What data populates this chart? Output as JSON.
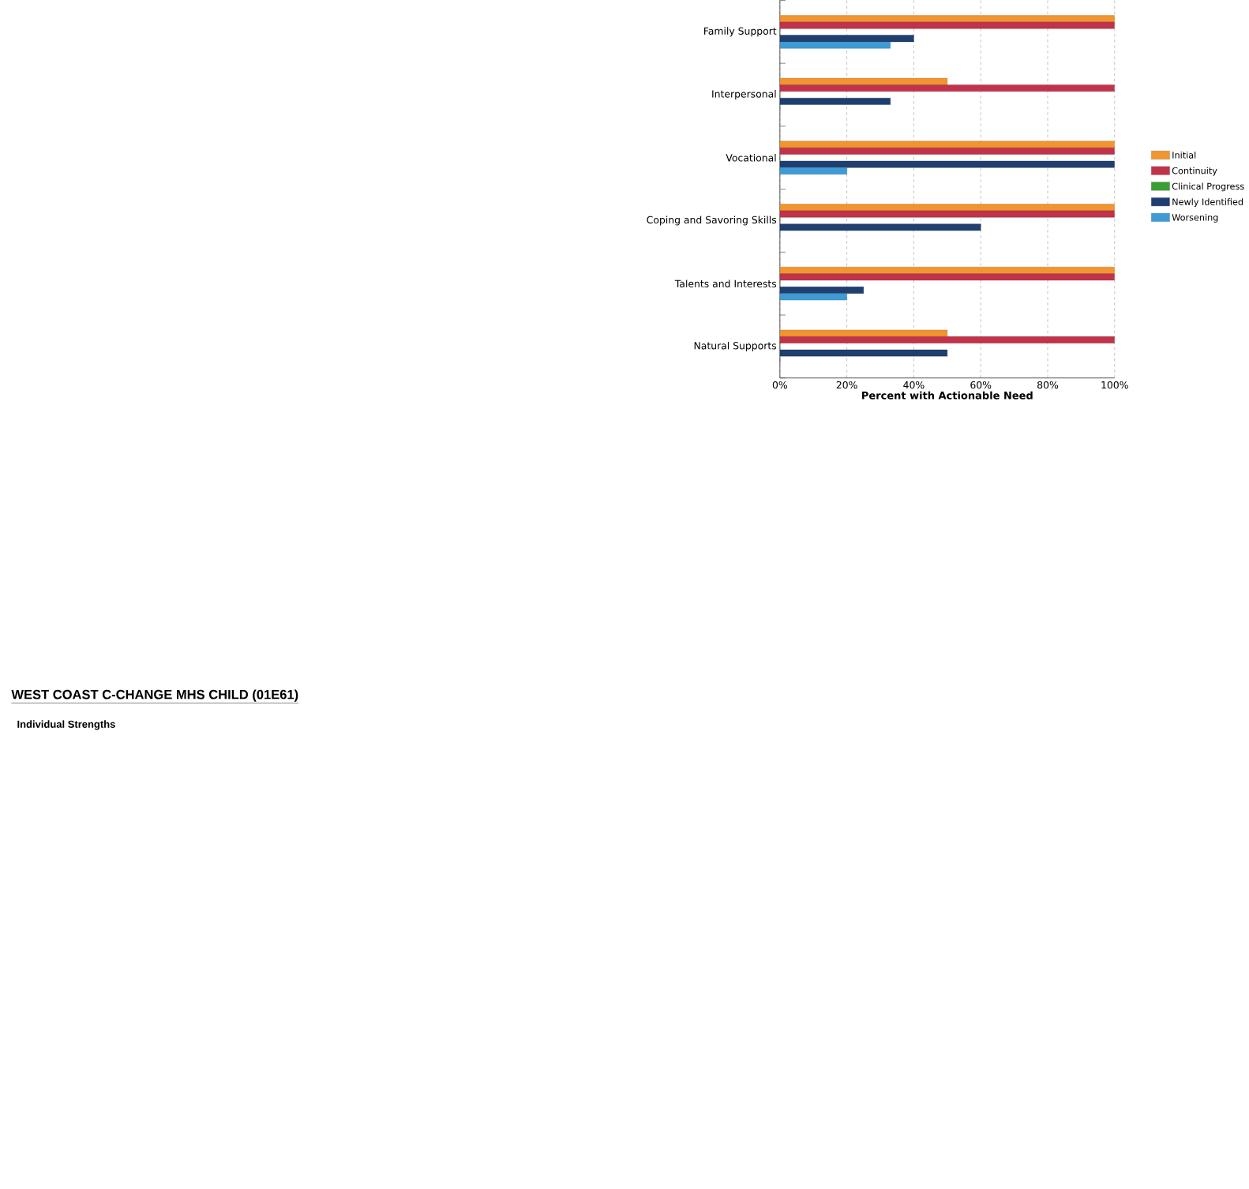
{
  "chart_data": {
    "type": "bar",
    "orientation": "horizontal",
    "title": "WEST COAST C-CHANGE MHS CHILD (01E61)",
    "subtitle": "Individual Strengths",
    "xlabel": "Percent with Actionable Need",
    "categories": [
      "Family Support",
      "Interpersonal",
      "Vocational",
      "Coping and Savoring Skills",
      "Talents and Interests",
      "Natural Supports"
    ],
    "series": [
      {
        "name": "Initial",
        "color": "#f0952f",
        "values": [
          100,
          50,
          100,
          100,
          100,
          50
        ]
      },
      {
        "name": "Continuity",
        "color": "#c0334a",
        "values": [
          100,
          100,
          100,
          100,
          100,
          100
        ]
      },
      {
        "name": "Clinical Progress",
        "color": "#3a9e32",
        "values": [
          0,
          0,
          0,
          0,
          0,
          0
        ]
      },
      {
        "name": "Newly Identified",
        "color": "#1f3f70",
        "values": [
          40,
          33,
          100,
          60,
          25,
          50
        ]
      },
      {
        "name": "Worsening",
        "color": "#3e9bd5",
        "values": [
          33,
          0,
          20,
          0,
          20,
          0
        ]
      }
    ],
    "xlim": [
      0,
      100
    ],
    "xticks": [
      {
        "value": 0,
        "label": "0%"
      },
      {
        "value": 20,
        "label": "20%"
      },
      {
        "value": 40,
        "label": "40%"
      },
      {
        "value": 60,
        "label": "60%"
      },
      {
        "value": 80,
        "label": "80%"
      },
      {
        "value": 100,
        "label": "100%"
      }
    ],
    "grid": "x",
    "legend": "right"
  }
}
